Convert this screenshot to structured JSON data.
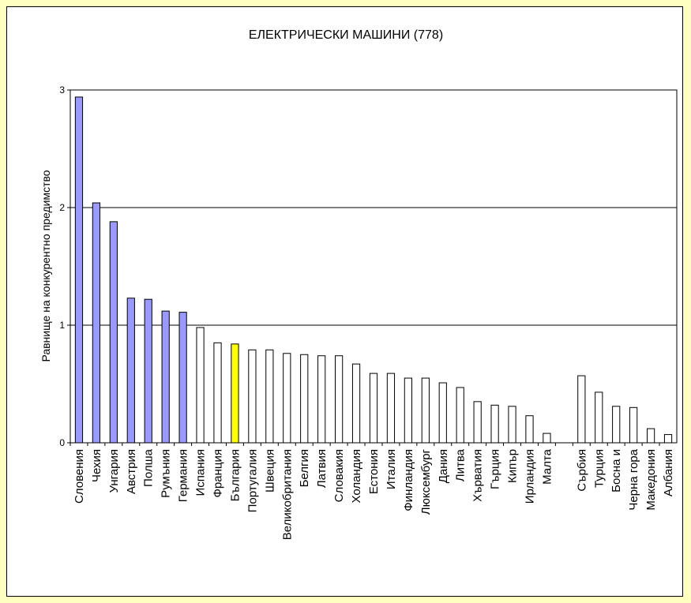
{
  "chart_data": {
    "type": "bar",
    "title": "ЕЛЕКТРИЧЕСКИ МАШИНИ (778)",
    "ylabel": "Равнище на конкурентно предимство",
    "xlabel": "",
    "ylim": [
      0,
      3
    ],
    "yticks": [
      0,
      1,
      2,
      3
    ],
    "grid": "horizontal",
    "legend": "none",
    "categories": [
      "Словения",
      "Чехия",
      "Унгария",
      "Австрия",
      "Полша",
      "Румъния",
      "Германия",
      "Испания",
      "Франция",
      "България",
      "Португалия",
      "Швеция",
      "Великобритания",
      "Белгия",
      "Латвия",
      "Словакия",
      "Холандия",
      "Естония",
      "Италия",
      "Финландия",
      "Люксембург",
      "Дания",
      "Литва",
      "Хърватия",
      "Гърция",
      "Кипър",
      "Ирландия",
      "Малта",
      "",
      "Сърбия",
      "Турция",
      "Босна и",
      "Черна гора",
      "Македония",
      "Албания"
    ],
    "values": [
      2.94,
      2.04,
      1.88,
      1.23,
      1.22,
      1.12,
      1.11,
      0.98,
      0.85,
      0.84,
      0.79,
      0.79,
      0.76,
      0.75,
      0.74,
      0.74,
      0.67,
      0.59,
      0.59,
      0.55,
      0.55,
      0.51,
      0.47,
      0.35,
      0.32,
      0.31,
      0.23,
      0.08,
      null,
      0.57,
      0.43,
      0.31,
      0.3,
      0.12,
      0.07
    ],
    "bar_colors": {
      "above_one": "#9999ff",
      "highlight": "#ffff00",
      "default": "#ffffff"
    },
    "highlight_category": "България"
  }
}
